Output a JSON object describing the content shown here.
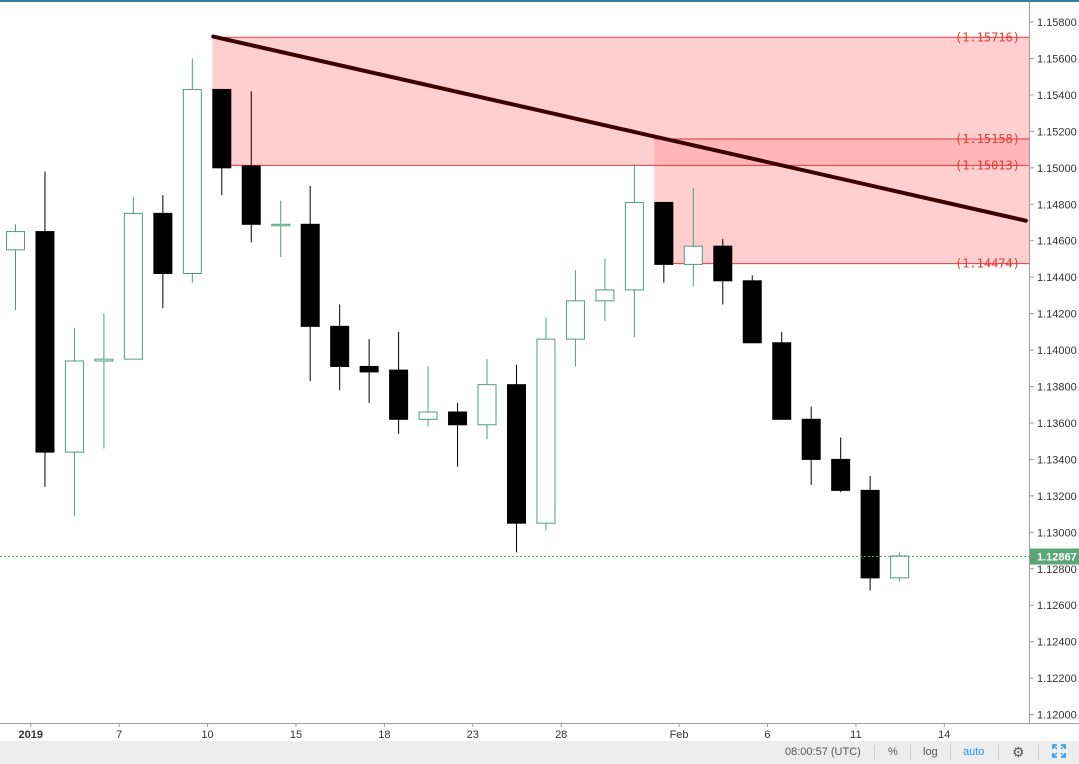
{
  "colors": {
    "up_border": "#4e9c7c",
    "down_fill": "#000000",
    "zone_fill": "#ff9e9e",
    "level_line": "#e03b3b",
    "trendline": "#3b0000",
    "last_price_bg": "#5aa676"
  },
  "chart_data": {
    "type": "candlestick",
    "y_axis": {
      "min": 1.1195,
      "max": 1.1589,
      "ticks": [
        "1.15800",
        "1.15600",
        "1.15400",
        "1.15200",
        "1.15000",
        "1.14800",
        "1.14600",
        "1.14400",
        "1.14200",
        "1.14000",
        "1.13800",
        "1.13600",
        "1.13400",
        "1.13200",
        "1.13000",
        "1.12800",
        "1.12600",
        "1.12400",
        "1.12200",
        "1.12000"
      ]
    },
    "x_axis": {
      "labels": [
        {
          "idx": 1,
          "text": "2019",
          "bold": true
        },
        {
          "idx": 4,
          "text": "7"
        },
        {
          "idx": 7,
          "text": "10"
        },
        {
          "idx": 10,
          "text": "15"
        },
        {
          "idx": 13,
          "text": "18"
        },
        {
          "idx": 16,
          "text": "23"
        },
        {
          "idx": 19,
          "text": "28"
        },
        {
          "idx": 23,
          "text": "Feb"
        },
        {
          "idx": 26,
          "text": "6"
        },
        {
          "idx": 29,
          "text": "11"
        },
        {
          "idx": 32,
          "text": "14"
        }
      ]
    },
    "candles": [
      {
        "o": 1.1455,
        "h": 1.1469,
        "l": 1.1422,
        "c": 1.1465
      },
      {
        "o": 1.1465,
        "h": 1.1498,
        "l": 1.1325,
        "c": 1.1344
      },
      {
        "o": 1.1344,
        "h": 1.1412,
        "l": 1.1309,
        "c": 1.1394
      },
      {
        "o": 1.1394,
        "h": 1.142,
        "l": 1.1346,
        "c": 1.1395
      },
      {
        "o": 1.1395,
        "h": 1.1484,
        "l": 1.1395,
        "c": 1.1475
      },
      {
        "o": 1.1475,
        "h": 1.1485,
        "l": 1.1423,
        "c": 1.1442
      },
      {
        "o": 1.1442,
        "h": 1.156,
        "l": 1.1437,
        "c": 1.1543
      },
      {
        "o": 1.1543,
        "h": 1.1543,
        "l": 1.1485,
        "c": 1.15
      },
      {
        "o": 1.1501,
        "h": 1.1542,
        "l": 1.1459,
        "c": 1.1469
      },
      {
        "o": 1.1469,
        "h": 1.1482,
        "l": 1.1451,
        "c": 1.1469
      },
      {
        "o": 1.1469,
        "h": 1.149,
        "l": 1.1383,
        "c": 1.1413
      },
      {
        "o": 1.1413,
        "h": 1.1425,
        "l": 1.1378,
        "c": 1.1391
      },
      {
        "o": 1.1391,
        "h": 1.1406,
        "l": 1.1371,
        "c": 1.1388
      },
      {
        "o": 1.1389,
        "h": 1.141,
        "l": 1.1354,
        "c": 1.1362
      },
      {
        "o": 1.1362,
        "h": 1.1391,
        "l": 1.1358,
        "c": 1.1366
      },
      {
        "o": 1.1366,
        "h": 1.1371,
        "l": 1.1336,
        "c": 1.1359
      },
      {
        "o": 1.1359,
        "h": 1.1395,
        "l": 1.1351,
        "c": 1.1381
      },
      {
        "o": 1.1381,
        "h": 1.1392,
        "l": 1.1289,
        "c": 1.1305
      },
      {
        "o": 1.1305,
        "h": 1.1418,
        "l": 1.1301,
        "c": 1.1406
      },
      {
        "o": 1.1406,
        "h": 1.1444,
        "l": 1.1391,
        "c": 1.1427
      },
      {
        "o": 1.1427,
        "h": 1.145,
        "l": 1.1416,
        "c": 1.1433
      },
      {
        "o": 1.1433,
        "h": 1.1502,
        "l": 1.1407,
        "c": 1.1481
      },
      {
        "o": 1.1481,
        "h": 1.1481,
        "l": 1.1437,
        "c": 1.1447
      },
      {
        "o": 1.1447,
        "h": 1.1489,
        "l": 1.1435,
        "c": 1.1457
      },
      {
        "o": 1.1457,
        "h": 1.1461,
        "l": 1.1425,
        "c": 1.1438
      },
      {
        "o": 1.1438,
        "h": 1.1441,
        "l": 1.1404,
        "c": 1.1404
      },
      {
        "o": 1.1404,
        "h": 1.141,
        "l": 1.1362,
        "c": 1.1362
      },
      {
        "o": 1.1362,
        "h": 1.1369,
        "l": 1.1326,
        "c": 1.134
      },
      {
        "o": 1.134,
        "h": 1.1352,
        "l": 1.1322,
        "c": 1.1323
      },
      {
        "o": 1.1323,
        "h": 1.1331,
        "l": 1.1268,
        "c": 1.1275
      },
      {
        "o": 1.1275,
        "h": 1.1289,
        "l": 1.1273,
        "c": 1.1287
      }
    ],
    "zones": [
      {
        "from_idx": 7,
        "top": 1.15716,
        "bottom": 1.15013
      },
      {
        "from_idx": 22,
        "top": 1.15158,
        "bottom": 1.14474
      }
    ],
    "levels": [
      {
        "price": 1.15716,
        "from_idx": 7,
        "label": "(1.15716)"
      },
      {
        "price": 1.15158,
        "from_idx": 22,
        "label": "(1.15158)"
      },
      {
        "price": 1.15013,
        "from_idx": 7,
        "label": "(1.15013)"
      },
      {
        "price": 1.14474,
        "from_idx": 22,
        "label": "(1.14474)"
      }
    ],
    "trendline": {
      "x1_idx": 7,
      "y1": 1.1572,
      "x2_idx": 34.3,
      "y2": 1.1471
    },
    "last_price": {
      "value": 1.12867,
      "label": "1.12867"
    }
  },
  "toolbar": {
    "clock": "08:00:57 (UTC)",
    "percent": "%",
    "log": "log",
    "auto": "auto"
  }
}
